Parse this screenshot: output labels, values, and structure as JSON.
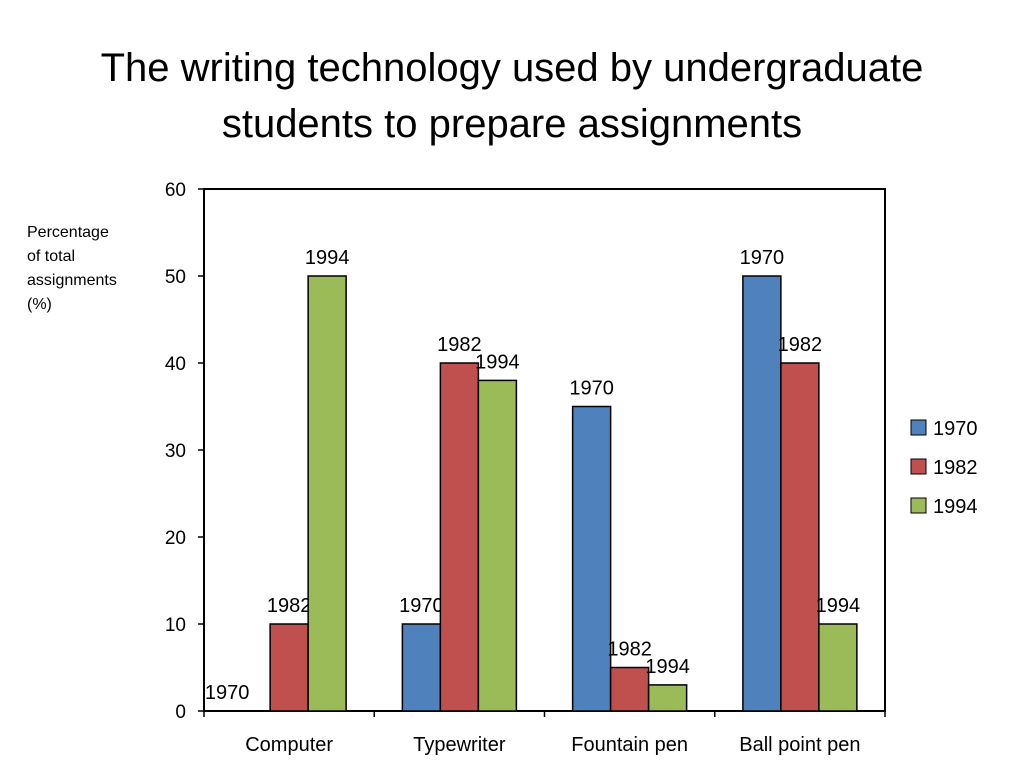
{
  "slide": {
    "title_line1": "The writing technology used by undergraduate",
    "title_line2": "students to prepare assignments"
  },
  "chart_data": {
    "type": "bar",
    "title": "The writing technology used by undergraduate students to prepare assignments",
    "ylabel_lines": [
      "Percentage",
      "of total",
      "assignments",
      "(%)"
    ],
    "xlabel": "",
    "categories": [
      "Computer",
      "Typewriter",
      "Fountain pen",
      "Ball point pen"
    ],
    "ylim": [
      0,
      60
    ],
    "yticks": [
      0,
      10,
      20,
      30,
      40,
      50,
      60
    ],
    "grid": false,
    "legend_position": "right",
    "series": [
      {
        "name": "1970",
        "color": "#4F81BD",
        "values": [
          0,
          10,
          35,
          50
        ]
      },
      {
        "name": "1982",
        "color": "#C0504D",
        "values": [
          10,
          40,
          5,
          40
        ]
      },
      {
        "name": "1994",
        "color": "#9BBB59",
        "values": [
          50,
          38,
          3,
          10
        ]
      }
    ]
  }
}
